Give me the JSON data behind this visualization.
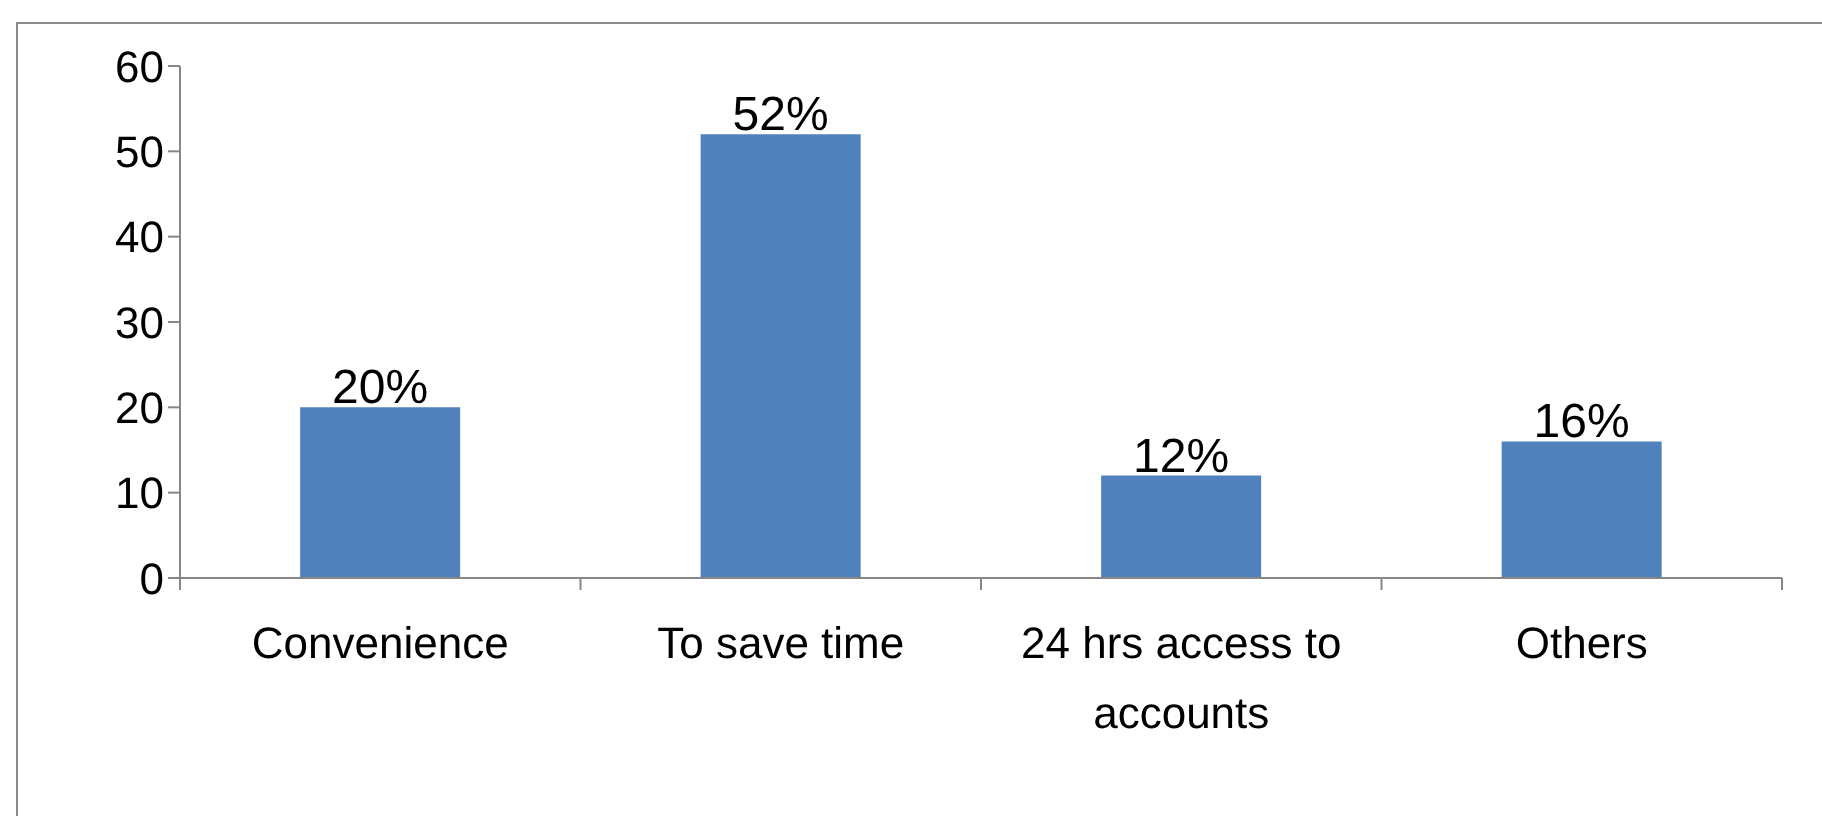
{
  "chart_data": {
    "type": "bar",
    "categories": [
      "Convenience",
      "To save time",
      "24 hrs access to accounts",
      "Others"
    ],
    "values": [
      20,
      52,
      12,
      16
    ],
    "color": "#4f81bd",
    "value_labels": [
      "20%",
      "52%",
      "12%",
      "16%"
    ],
    "ylim": [
      0,
      60
    ],
    "yticks": [
      0,
      10,
      20,
      30,
      40,
      50,
      60
    ]
  }
}
